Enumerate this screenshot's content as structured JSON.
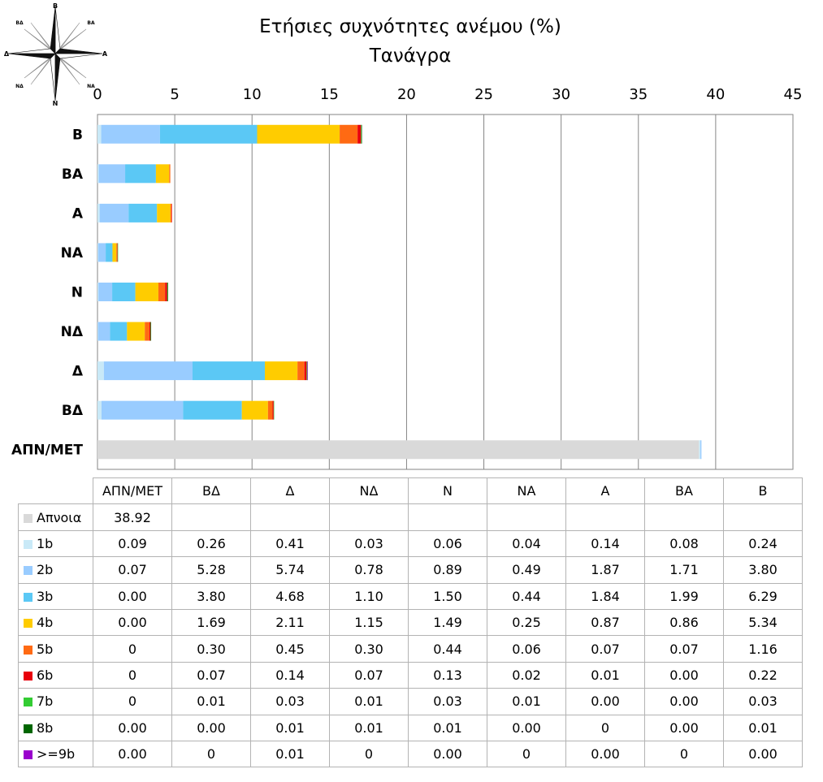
{
  "compass": {
    "labels": {
      "n": "Β",
      "ne": "ΒΑ",
      "e": "Α",
      "se": "ΝΑ",
      "s": "Ν",
      "sw": "ΝΔ",
      "w": "Δ",
      "nw": "ΒΔ"
    }
  },
  "chart_data": {
    "type": "bar",
    "orientation": "horizontal",
    "stacked": true,
    "title": "Ετήσιες συχνότητες ανέμου (%)",
    "subtitle": "Τανάγρα",
    "xlim": [
      0,
      45
    ],
    "xticks": [
      0,
      5,
      10,
      15,
      20,
      25,
      30,
      35,
      40,
      45
    ],
    "x_axis_position": "top",
    "grid": true,
    "categories": [
      "Β",
      "ΒΑ",
      "Α",
      "ΝΑ",
      "Ν",
      "ΝΔ",
      "Δ",
      "ΒΔ",
      "ΑΠΝ/ΜΕΤ"
    ],
    "series": [
      {
        "name": "Απνοια",
        "color": "#d9d9d9",
        "values": [
          null,
          null,
          null,
          null,
          null,
          null,
          null,
          null,
          38.92
        ],
        "labels": [
          "",
          "",
          "",
          "",
          "",
          "",
          "",
          "",
          "38.92"
        ]
      },
      {
        "name": "1b",
        "color": "#c9e9f7",
        "values": [
          0.24,
          0.08,
          0.14,
          0.04,
          0.06,
          0.03,
          0.41,
          0.26,
          0.09
        ],
        "labels": [
          "0.24",
          "0.08",
          "0.14",
          "0.04",
          "0.06",
          "0.03",
          "0.41",
          "0.26",
          "0.09"
        ]
      },
      {
        "name": "2b",
        "color": "#99ccff",
        "values": [
          3.8,
          1.71,
          1.87,
          0.49,
          0.89,
          0.78,
          5.74,
          5.28,
          0.07
        ],
        "labels": [
          "3.80",
          "1.71",
          "1.87",
          "0.49",
          "0.89",
          "0.78",
          "5.74",
          "5.28",
          "0.07"
        ]
      },
      {
        "name": "3b",
        "color": "#5bc8f5",
        "values": [
          6.29,
          1.99,
          1.84,
          0.44,
          1.5,
          1.1,
          4.68,
          3.8,
          0.0
        ],
        "labels": [
          "6.29",
          "1.99",
          "1.84",
          "0.44",
          "1.50",
          "1.10",
          "4.68",
          "3.80",
          "0.00"
        ]
      },
      {
        "name": "4b",
        "color": "#ffcc00",
        "values": [
          5.34,
          0.86,
          0.87,
          0.25,
          1.49,
          1.15,
          2.11,
          1.69,
          0.0
        ],
        "labels": [
          "5.34",
          "0.86",
          "0.87",
          "0.25",
          "1.49",
          "1.15",
          "2.11",
          "1.69",
          "0.00"
        ]
      },
      {
        "name": "5b",
        "color": "#ff6a13",
        "values": [
          1.16,
          0.07,
          0.07,
          0.06,
          0.44,
          0.3,
          0.45,
          0.3,
          0
        ],
        "labels": [
          "1.16",
          "0.07",
          "0.07",
          "0.06",
          "0.44",
          "0.30",
          "0.45",
          "0.30",
          "0"
        ]
      },
      {
        "name": "6b",
        "color": "#e8000b",
        "values": [
          0.22,
          0.0,
          0.01,
          0.02,
          0.13,
          0.07,
          0.14,
          0.07,
          0
        ],
        "labels": [
          "0.22",
          "0.00",
          "0.01",
          "0.02",
          "0.13",
          "0.07",
          "0.14",
          "0.07",
          "0"
        ]
      },
      {
        "name": "7b",
        "color": "#33cc33",
        "values": [
          0.03,
          0.0,
          0.0,
          0.01,
          0.03,
          0.01,
          0.03,
          0.01,
          0
        ],
        "labels": [
          "0.03",
          "0.00",
          "0.00",
          "0.01",
          "0.03",
          "0.01",
          "0.03",
          "0.01",
          "0"
        ]
      },
      {
        "name": "8b",
        "color": "#006600",
        "values": [
          0.01,
          0.0,
          0,
          0.0,
          0.01,
          0.01,
          0.01,
          0.0,
          0.0
        ],
        "labels": [
          "0.01",
          "0.00",
          "0",
          "0.00",
          "0.01",
          "0.01",
          "0.01",
          "0.00",
          "0.00"
        ]
      },
      {
        "name": ">=9b",
        "color": "#9900cc",
        "values": [
          0.0,
          0,
          0.0,
          0,
          0.0,
          0,
          0.01,
          0,
          0.0
        ],
        "labels": [
          "0.00",
          "0",
          "0.00",
          "0",
          "0.00",
          "0",
          "0.01",
          "0",
          "0.00"
        ]
      }
    ]
  }
}
